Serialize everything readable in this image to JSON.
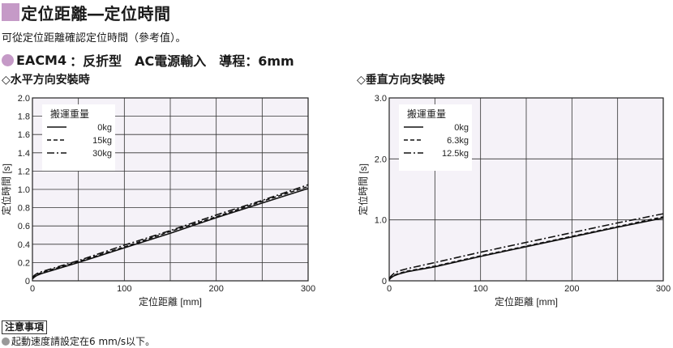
{
  "title": "定位距離―定位時間",
  "subtitle": "可從定位距離確認定位時間（參考值）。",
  "model": {
    "name": "EACM4",
    "spec": "：反折型　AC電源輸入　導程：6mm"
  },
  "colors": {
    "accent": "#c59ac7",
    "plot_bg": "#f5f2f8",
    "grid": "#333333"
  },
  "note": {
    "heading": "注意事項",
    "text": "起動速度請設定在6 mm/s以下。"
  },
  "chart_data": [
    {
      "type": "line",
      "title": "◇水平方向安裝時",
      "xlabel": "定位距離 [mm]",
      "ylabel": "定位時間 [s]",
      "xlim": [
        0,
        300
      ],
      "ylim": [
        0,
        2.0
      ],
      "x_ticks": [
        "0",
        "100",
        "200",
        "300"
      ],
      "y_ticks": [
        "0",
        "0.2",
        "0.4",
        "0.6",
        "0.8",
        "1.0",
        "1.2",
        "1.4",
        "1.6",
        "1.8",
        "2.0"
      ],
      "grid": true,
      "legend_title": "搬運重量",
      "legend_position": "top-left",
      "series": [
        {
          "name": "0kg",
          "style": "solid",
          "x": [
            0,
            2,
            5,
            10,
            20,
            50,
            100,
            150,
            200,
            250,
            300
          ],
          "y": [
            0.02,
            0.04,
            0.06,
            0.08,
            0.11,
            0.2,
            0.36,
            0.52,
            0.69,
            0.85,
            1.01
          ]
        },
        {
          "name": "15kg",
          "style": "dashed",
          "x": [
            0,
            2,
            5,
            10,
            20,
            50,
            100,
            150,
            200,
            250,
            300
          ],
          "y": [
            0.03,
            0.05,
            0.07,
            0.09,
            0.12,
            0.21,
            0.37,
            0.54,
            0.7,
            0.87,
            1.03
          ]
        },
        {
          "name": "30kg",
          "style": "dashdot",
          "x": [
            0,
            2,
            5,
            10,
            20,
            50,
            100,
            150,
            200,
            250,
            300
          ],
          "y": [
            0.04,
            0.06,
            0.08,
            0.1,
            0.13,
            0.22,
            0.39,
            0.55,
            0.72,
            0.88,
            1.05
          ]
        }
      ]
    },
    {
      "type": "line",
      "title": "◇垂直方向安裝時",
      "xlabel": "定位距離 [mm]",
      "ylabel": "定位時間 [s]",
      "xlim": [
        0,
        300
      ],
      "ylim": [
        0,
        3.0
      ],
      "x_ticks": [
        "0",
        "100",
        "200",
        "300"
      ],
      "y_ticks": [
        "0",
        "1.0",
        "2.0",
        "3.0"
      ],
      "grid": true,
      "legend_title": "搬運重量",
      "legend_position": "top-left",
      "series": [
        {
          "name": "0kg",
          "style": "solid",
          "x": [
            0,
            2,
            5,
            10,
            20,
            50,
            100,
            150,
            200,
            250,
            300
          ],
          "y": [
            0.02,
            0.05,
            0.08,
            0.11,
            0.15,
            0.23,
            0.4,
            0.56,
            0.72,
            0.88,
            1.03
          ]
        },
        {
          "name": "6.3kg",
          "style": "dashed",
          "x": [
            0,
            2,
            5,
            10,
            20,
            50,
            100,
            150,
            200,
            250,
            300
          ],
          "y": [
            0.03,
            0.06,
            0.09,
            0.12,
            0.16,
            0.24,
            0.41,
            0.57,
            0.73,
            0.89,
            1.05
          ]
        },
        {
          "name": "12.5kg",
          "style": "dashdot",
          "x": [
            0,
            2,
            5,
            10,
            20,
            50,
            100,
            150,
            200,
            250,
            300
          ],
          "y": [
            0.04,
            0.08,
            0.12,
            0.16,
            0.2,
            0.3,
            0.47,
            0.63,
            0.79,
            0.95,
            1.1
          ]
        }
      ]
    }
  ]
}
